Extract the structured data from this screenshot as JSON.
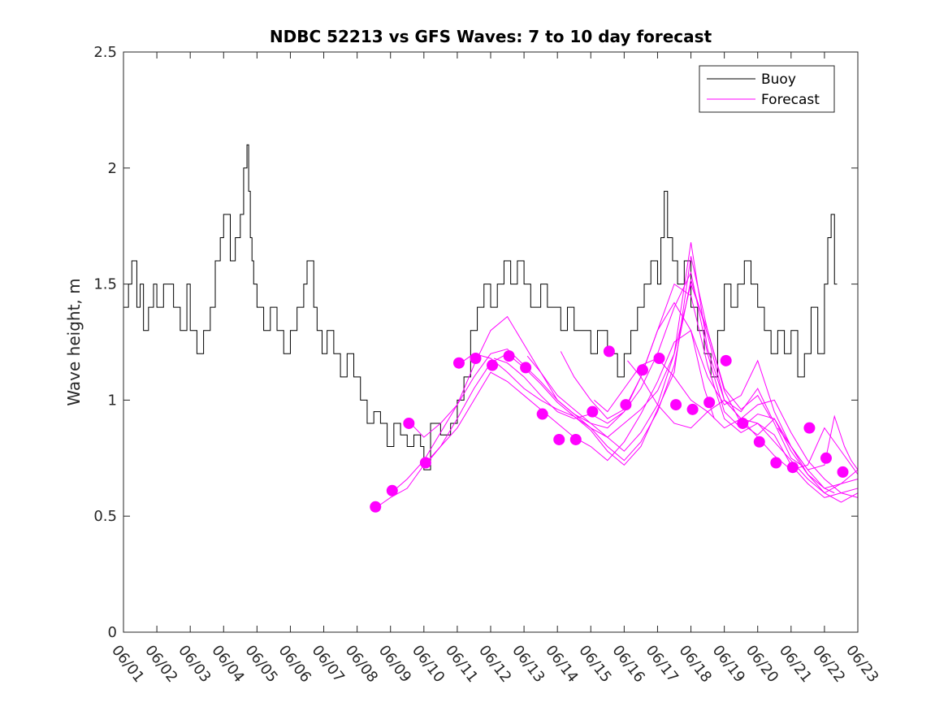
{
  "chart_data": {
    "type": "line",
    "title": "NDBC 52213 vs GFS Waves: 7 to 10 day forecast",
    "xlabel": "",
    "ylabel": "Wave height, m",
    "x_ticks": [
      "06/01",
      "06/02",
      "06/03",
      "06/04",
      "06/05",
      "06/06",
      "06/07",
      "06/08",
      "06/09",
      "06/10",
      "06/11",
      "06/12",
      "06/13",
      "06/14",
      "06/15",
      "06/16",
      "06/17",
      "06/18",
      "06/19",
      "06/20",
      "06/21",
      "06/22",
      "06/23"
    ],
    "y_ticks": [
      "0",
      "0.5",
      "1",
      "1.5",
      "2",
      "2.5"
    ],
    "xlim": [
      0,
      22
    ],
    "ylim": [
      0,
      2.5
    ],
    "grid": false,
    "legend_position": "top-right",
    "colors": {
      "buoy": "#000000",
      "forecast": "#ff00ff"
    },
    "series": [
      {
        "name": "Buoy",
        "style": "step",
        "x": [
          0,
          0.15,
          0.25,
          0.4,
          0.5,
          0.6,
          0.75,
          0.9,
          1.0,
          1.2,
          1.5,
          1.7,
          1.9,
          2.0,
          2.2,
          2.4,
          2.6,
          2.75,
          2.9,
          3.0,
          3.2,
          3.35,
          3.5,
          3.6,
          3.7,
          3.75,
          3.8,
          3.85,
          3.9,
          4.0,
          4.2,
          4.4,
          4.6,
          4.8,
          5.0,
          5.2,
          5.4,
          5.5,
          5.7,
          5.8,
          5.95,
          6.1,
          6.3,
          6.5,
          6.7,
          6.9,
          7.1,
          7.3,
          7.5,
          7.7,
          7.9,
          8.1,
          8.3,
          8.5,
          8.7,
          8.9,
          9.0,
          9.2,
          9.5,
          9.8,
          10.0,
          10.2,
          10.4,
          10.6,
          10.8,
          11.0,
          11.2,
          11.4,
          11.6,
          11.8,
          12.0,
          12.2,
          12.5,
          12.7,
          12.9,
          13.1,
          13.3,
          13.5,
          13.8,
          14.0,
          14.2,
          14.5,
          14.8,
          15.0,
          15.2,
          15.4,
          15.6,
          15.8,
          16.0,
          16.1,
          16.2,
          16.3,
          16.45,
          16.6,
          16.8,
          17.0,
          17.2,
          17.4,
          17.6,
          17.8,
          18.0,
          18.2,
          18.4,
          18.6,
          18.8,
          19.0,
          19.2,
          19.4,
          19.6,
          19.8,
          20.0,
          20.2,
          20.4,
          20.6,
          20.8,
          21.0,
          21.1,
          21.2,
          21.3
        ],
        "y": [
          1.4,
          1.5,
          1.6,
          1.4,
          1.5,
          1.3,
          1.4,
          1.5,
          1.4,
          1.5,
          1.4,
          1.3,
          1.5,
          1.3,
          1.2,
          1.3,
          1.4,
          1.6,
          1.7,
          1.8,
          1.6,
          1.7,
          1.8,
          2.0,
          2.1,
          1.9,
          1.7,
          1.6,
          1.5,
          1.4,
          1.3,
          1.4,
          1.3,
          1.2,
          1.3,
          1.4,
          1.5,
          1.6,
          1.4,
          1.3,
          1.2,
          1.3,
          1.2,
          1.1,
          1.2,
          1.1,
          1.0,
          0.9,
          0.95,
          0.9,
          0.8,
          0.9,
          0.85,
          0.8,
          0.85,
          0.8,
          0.7,
          0.9,
          0.85,
          0.9,
          1.0,
          1.1,
          1.3,
          1.4,
          1.5,
          1.4,
          1.5,
          1.6,
          1.5,
          1.6,
          1.5,
          1.4,
          1.5,
          1.4,
          1.4,
          1.3,
          1.4,
          1.3,
          1.3,
          1.2,
          1.3,
          1.2,
          1.1,
          1.2,
          1.3,
          1.4,
          1.5,
          1.6,
          1.5,
          1.7,
          1.9,
          1.7,
          1.6,
          1.5,
          1.6,
          1.4,
          1.3,
          1.2,
          1.1,
          1.3,
          1.5,
          1.4,
          1.5,
          1.6,
          1.5,
          1.4,
          1.3,
          1.2,
          1.3,
          1.2,
          1.3,
          1.1,
          1.2,
          1.4,
          1.2,
          1.5,
          1.7,
          1.8,
          1.5
        ]
      },
      {
        "name": "Forecast",
        "style": "lines",
        "runs": [
          {
            "x": [
              7.6,
              8.0,
              8.5,
              9.0,
              9.5,
              10.0,
              10.5,
              11.0,
              11.5,
              12.0,
              12.5,
              13.0,
              13.5,
              14.0,
              14.5,
              15.0,
              15.5,
              16.0,
              16.5,
              17.0,
              17.4,
              17.7
            ],
            "y": [
              0.54,
              0.58,
              0.62,
              0.72,
              0.8,
              0.88,
              1.0,
              1.12,
              1.08,
              1.02,
              0.96,
              0.9,
              0.84,
              0.8,
              0.74,
              0.82,
              0.94,
              1.08,
              1.25,
              1.3,
              1.05,
              0.92
            ]
          },
          {
            "x": [
              8.1,
              8.5,
              9.0,
              9.5,
              10.0,
              10.5,
              11.0,
              11.5,
              12.0,
              12.5,
              13.0,
              13.5,
              14.0,
              14.5,
              15.0,
              15.5,
              16.0,
              16.5,
              17.0,
              17.5,
              18.0,
              18.5,
              19.0,
              19.4
            ],
            "y": [
              0.61,
              0.66,
              0.74,
              0.86,
              0.98,
              1.15,
              1.3,
              1.36,
              1.24,
              1.12,
              1.02,
              0.96,
              0.9,
              0.84,
              0.78,
              0.86,
              0.98,
              1.2,
              1.5,
              1.3,
              1.05,
              0.96,
              1.02,
              0.92
            ]
          },
          {
            "x": [
              8.6,
              9.0,
              9.5,
              10.0,
              10.5,
              11.0,
              11.5,
              12.0,
              12.5,
              13.0,
              13.5,
              14.0,
              14.5,
              15.0,
              15.5,
              16.0,
              16.5,
              17.0,
              17.5,
              18.0,
              18.5,
              19.0,
              19.5,
              20.0,
              20.3
            ],
            "y": [
              0.9,
              0.84,
              0.9,
              0.98,
              1.1,
              1.2,
              1.22,
              1.15,
              1.08,
              1.0,
              0.94,
              0.88,
              0.8,
              0.74,
              0.82,
              0.95,
              1.15,
              1.52,
              1.28,
              1.0,
              0.95,
              1.05,
              0.9,
              0.75,
              0.72
            ]
          },
          {
            "x": [
              9.1,
              9.5,
              10.0,
              10.5,
              11.0,
              11.5,
              12.0,
              12.5,
              13.0,
              13.5,
              14.0,
              14.5,
              15.0,
              15.5,
              16.0,
              16.5,
              17.0,
              17.5,
              18.0,
              18.5,
              19.0,
              19.5,
              20.0,
              20.5,
              21.0,
              21.3
            ],
            "y": [
              0.73,
              0.8,
              0.92,
              1.05,
              1.16,
              1.2,
              1.14,
              1.07,
              0.99,
              0.93,
              0.87,
              0.78,
              0.72,
              0.8,
              0.96,
              1.12,
              1.62,
              1.3,
              1.04,
              0.9,
              0.85,
              0.92,
              0.8,
              0.68,
              0.62,
              0.6
            ]
          },
          {
            "x": [
              10.1,
              10.5,
              11.0,
              11.5,
              12.0,
              12.5,
              13.0,
              13.5,
              14.0,
              14.5,
              15.0,
              15.5,
              16.0,
              16.5,
              17.0,
              17.5,
              18.0,
              18.5,
              19.0,
              19.5,
              20.0,
              20.5,
              21.0,
              21.5,
              22.0
            ],
            "y": [
              1.16,
              1.2,
              1.18,
              1.12,
              1.05,
              1.0,
              0.96,
              0.93,
              0.88,
              0.84,
              0.9,
              0.96,
              1.04,
              1.2,
              1.68,
              1.22,
              1.0,
              0.92,
              0.98,
              1.0,
              0.86,
              0.74,
              0.66,
              0.6,
              0.58
            ]
          },
          {
            "x": [
              11.1,
              11.5,
              12.0,
              12.5,
              13.0,
              13.5,
              14.0,
              14.5,
              15.0,
              15.5,
              16.0,
              16.5,
              17.0,
              17.5,
              18.0,
              18.5,
              19.0,
              19.5,
              20.0,
              20.5,
              21.0,
              21.5,
              22.0
            ],
            "y": [
              1.18,
              1.16,
              1.1,
              1.02,
              0.95,
              0.92,
              0.94,
              0.9,
              0.95,
              1.05,
              1.2,
              1.4,
              1.55,
              1.2,
              0.95,
              0.88,
              0.94,
              0.92,
              0.78,
              0.68,
              0.6,
              0.56,
              0.6
            ]
          },
          {
            "x": [
              12.1,
              12.5,
              13.0,
              13.5,
              14.0,
              14.5,
              15.0,
              15.5,
              16.0,
              16.5,
              17.0,
              17.5,
              18.0,
              18.5,
              19.0,
              19.5,
              20.0,
              20.5,
              21.0,
              21.5,
              22.0
            ],
            "y": [
              1.19,
              1.12,
              1.0,
              0.94,
              0.9,
              0.88,
              0.95,
              1.1,
              1.3,
              1.5,
              1.45,
              1.15,
              0.92,
              0.86,
              0.9,
              0.85,
              0.72,
              0.64,
              0.58,
              0.6,
              0.62
            ]
          },
          {
            "x": [
              13.1,
              13.5,
              14.0,
              14.5,
              15.0,
              15.5,
              16.0,
              16.5,
              17.0,
              17.5,
              18.0,
              18.5,
              19.0,
              19.5,
              20.0,
              20.5,
              21.0,
              21.5,
              22.0
            ],
            "y": [
              1.21,
              1.1,
              1.0,
              0.92,
              0.96,
              1.1,
              1.3,
              1.42,
              1.3,
              1.1,
              0.98,
              1.02,
              1.17,
              0.95,
              0.8,
              0.7,
              0.62,
              0.64,
              0.66
            ]
          },
          {
            "x": [
              14.1,
              14.5,
              15.0,
              15.5,
              16.0,
              16.5,
              17.0,
              17.5,
              18.0,
              18.5,
              19.0,
              19.5,
              20.0,
              20.5,
              21.0,
              21.5,
              22.0
            ],
            "y": [
              1.0,
              0.95,
              1.05,
              1.15,
              1.18,
              1.1,
              1.0,
              0.95,
              0.88,
              0.92,
              0.9,
              0.82,
              0.74,
              0.66,
              0.6,
              0.64,
              0.7
            ]
          },
          {
            "x": [
              15.1,
              15.5,
              16.0,
              16.5,
              17.0,
              17.5,
              18.0,
              18.5,
              19.0,
              19.5,
              20.0,
              20.5,
              21.0,
              21.5,
              22.0
            ],
            "y": [
              1.17,
              1.1,
              0.98,
              0.9,
              0.88,
              0.95,
              1.0,
              0.92,
              0.84,
              0.76,
              0.7,
              0.72,
              0.88,
              0.78,
              0.68
            ]
          },
          {
            "x": [
              19.6,
              20.0,
              20.5,
              21.0,
              21.3,
              21.6,
              21.8,
              22.0
            ],
            "y": [
              0.88,
              0.8,
              0.7,
              0.72,
              0.93,
              0.8,
              0.74,
              0.7
            ]
          }
        ],
        "markers": {
          "x": [
            7.55,
            8.05,
            8.55,
            9.05,
            10.05,
            10.55,
            11.05,
            11.55,
            12.05,
            12.55,
            13.05,
            13.55,
            14.05,
            14.55,
            15.05,
            15.55,
            16.05,
            16.55,
            17.05,
            17.55,
            18.05,
            18.55,
            19.05,
            19.55,
            20.05,
            20.55,
            21.05,
            21.55
          ],
          "y": [
            0.54,
            0.61,
            0.9,
            0.73,
            1.16,
            1.18,
            1.15,
            1.19,
            1.14,
            0.94,
            0.83,
            0.83,
            0.95,
            1.21,
            0.98,
            1.13,
            1.18,
            0.98,
            0.96,
            0.99,
            1.17,
            0.9,
            0.82,
            0.73,
            0.71,
            0.88,
            0.75,
            0.69
          ]
        }
      }
    ]
  }
}
